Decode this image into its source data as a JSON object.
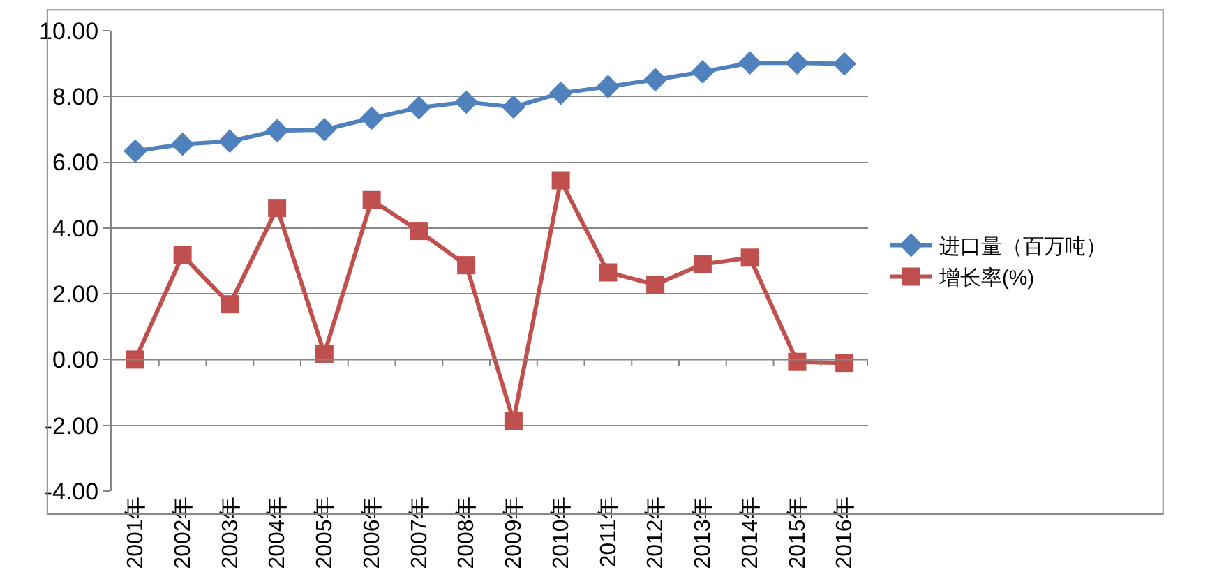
{
  "chart_data": {
    "type": "line",
    "categories": [
      "2001年",
      "2002年",
      "2003年",
      "2004年",
      "2005年",
      "2006年",
      "2007年",
      "2008年",
      "2009年",
      "2010年",
      "2011年",
      "2012年",
      "2013年",
      "2014年",
      "2015年",
      "2016年"
    ],
    "series": [
      {
        "name": "进口量（百万吨）",
        "color": "#4f81bd",
        "marker": "diamond",
        "values": [
          6.34,
          6.55,
          6.64,
          6.96,
          6.99,
          7.34,
          7.66,
          7.83,
          7.68,
          8.1,
          8.3,
          8.51,
          8.75,
          9.02,
          9.02,
          8.99
        ]
      },
      {
        "name": "增长率(%)",
        "color": "#c0504d",
        "marker": "square",
        "values": [
          0.0,
          3.17,
          1.68,
          4.61,
          0.18,
          4.85,
          3.91,
          2.87,
          -1.86,
          5.45,
          2.65,
          2.28,
          2.9,
          3.1,
          -0.07,
          -0.1
        ]
      }
    ],
    "ylim": [
      -4,
      10
    ],
    "yticks": [
      {
        "value": -4,
        "label": "-4.00"
      },
      {
        "value": -2,
        "label": "-2.00"
      },
      {
        "value": 0,
        "label": "0.00"
      },
      {
        "value": 2,
        "label": "2.00"
      },
      {
        "value": 4,
        "label": "4.00"
      },
      {
        "value": 6,
        "label": "6.00"
      },
      {
        "value": 8,
        "label": "8.00"
      },
      {
        "value": 10,
        "label": "10.00"
      }
    ],
    "grid": "y",
    "legend": "right"
  }
}
